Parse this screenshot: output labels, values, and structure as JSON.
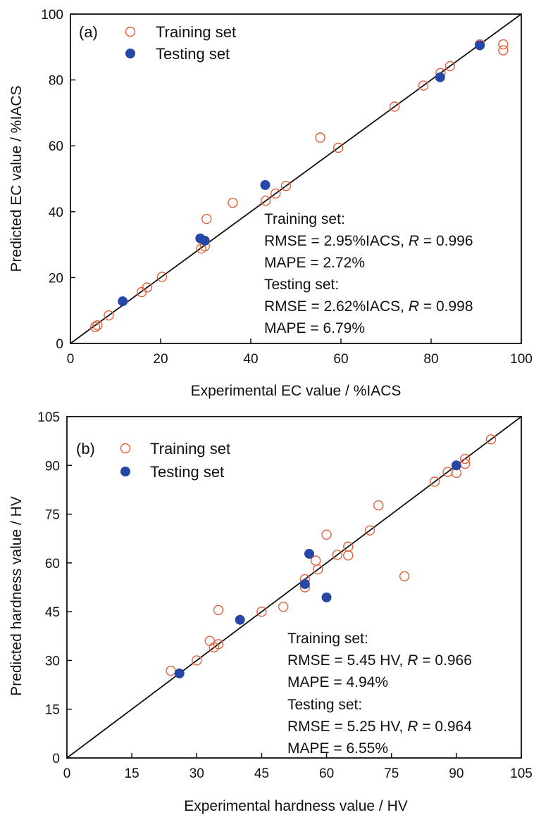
{
  "chart_data": [
    {
      "type": "scatter",
      "panel_label": "(a)",
      "xlabel": "Experimental EC value / %IACS",
      "ylabel": "Predicted EC value / %IACS",
      "xlim": [
        0,
        100
      ],
      "ylim": [
        0,
        100
      ],
      "xticks": [
        0,
        20,
        40,
        60,
        80,
        100
      ],
      "yticks": [
        0,
        20,
        40,
        60,
        80,
        100
      ],
      "reference_line": "y = x",
      "grid": false,
      "legend_position": "top-left",
      "series": [
        {
          "name": "Training set",
          "marker": "open-circle",
          "color": "#e0603a",
          "points": [
            [
              5.5,
              5.0
            ],
            [
              6.0,
              5.5
            ],
            [
              8.5,
              8.5
            ],
            [
              15.8,
              15.6
            ],
            [
              17.0,
              17.0
            ],
            [
              20.3,
              20.2
            ],
            [
              29.0,
              28.8
            ],
            [
              29.8,
              29.5
            ],
            [
              30.2,
              37.8
            ],
            [
              36.0,
              42.7
            ],
            [
              43.3,
              43.3
            ],
            [
              45.5,
              45.5
            ],
            [
              47.8,
              47.8
            ],
            [
              55.4,
              62.5
            ],
            [
              59.4,
              59.4
            ],
            [
              71.9,
              71.9
            ],
            [
              78.3,
              78.3
            ],
            [
              82.1,
              82.1
            ],
            [
              84.2,
              84.2
            ],
            [
              90.8,
              90.8
            ],
            [
              96.0,
              90.8
            ],
            [
              96.0,
              89.0
            ]
          ]
        },
        {
          "name": "Testing set",
          "marker": "filled-circle",
          "color": "#2747a6",
          "points": [
            [
              11.6,
              12.8
            ],
            [
              28.8,
              31.9
            ],
            [
              29.8,
              31.2
            ],
            [
              43.2,
              48.1
            ],
            [
              82.0,
              80.8
            ],
            [
              90.8,
              90.5
            ]
          ]
        }
      ],
      "annotations": [
        "Training set:",
        "RMSE = 2.95%IACS, R = 0.996",
        "MAPE = 2.72%",
        "Testing set:",
        "RMSE = 2.62%IACS, R = 0.998",
        "MAPE = 6.79%"
      ]
    },
    {
      "type": "scatter",
      "panel_label": "(b)",
      "xlabel": "Experimental hardness value / HV",
      "ylabel": "Predicted hardness value / HV",
      "xlim": [
        0,
        105
      ],
      "ylim": [
        0,
        105
      ],
      "xticks": [
        0,
        15,
        30,
        45,
        60,
        75,
        90,
        105
      ],
      "yticks": [
        0,
        15,
        30,
        45,
        60,
        75,
        90,
        105
      ],
      "reference_line": "y = x",
      "grid": false,
      "legend_position": "top-left",
      "series": [
        {
          "name": "Training set",
          "marker": "open-circle",
          "color": "#e0603a",
          "points": [
            [
              24.0,
              26.8
            ],
            [
              30.0,
              30.0
            ],
            [
              33.0,
              36.0
            ],
            [
              34.0,
              34.0
            ],
            [
              35.0,
              35.0
            ],
            [
              35.0,
              45.5
            ],
            [
              45.0,
              45.0
            ],
            [
              50.0,
              46.5
            ],
            [
              55.0,
              52.5
            ],
            [
              55.0,
              55.0
            ],
            [
              57.5,
              60.7
            ],
            [
              58.0,
              58.0
            ],
            [
              60.0,
              68.7
            ],
            [
              62.5,
              62.5
            ],
            [
              65.0,
              62.3
            ],
            [
              65.0,
              65.0
            ],
            [
              70.0,
              70.0
            ],
            [
              72.0,
              77.7
            ],
            [
              78.0,
              55.9
            ],
            [
              85.0,
              85.0
            ],
            [
              88.0,
              88.0
            ],
            [
              90.0,
              87.7
            ],
            [
              92.0,
              90.5
            ],
            [
              92.0,
              92.0
            ],
            [
              98.0,
              98.0
            ]
          ]
        },
        {
          "name": "Testing set",
          "marker": "filled-circle",
          "color": "#2747a6",
          "points": [
            [
              26.0,
              26.0
            ],
            [
              40.0,
              42.5
            ],
            [
              55.0,
              53.5
            ],
            [
              56.0,
              62.8
            ],
            [
              60.0,
              49.4
            ],
            [
              90.0,
              90.0
            ]
          ]
        }
      ],
      "annotations": [
        "Training set:",
        "RMSE = 5.45 HV, R = 0.966",
        "MAPE = 4.94%",
        "Testing  set:",
        "RMSE = 5.25 HV, R = 0.964",
        "MAPE = 6.55%"
      ]
    }
  ]
}
